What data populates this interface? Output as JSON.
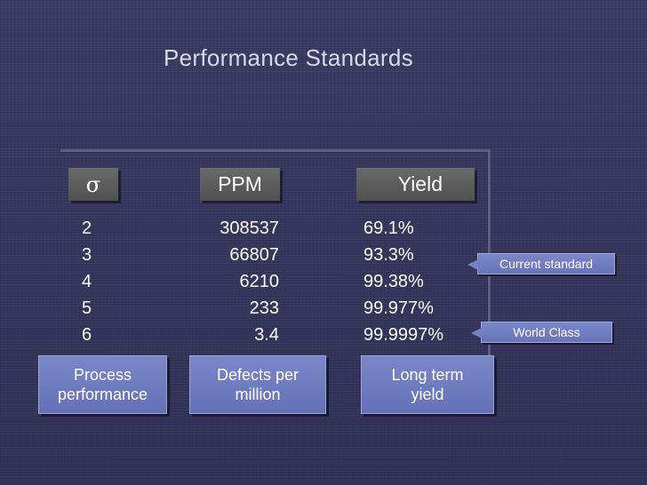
{
  "slide": {
    "title": "Performance Standards"
  },
  "table": {
    "headers": {
      "sigma": "σ",
      "ppm": "PPM",
      "yield": "Yield"
    },
    "rows": [
      {
        "sigma": "2",
        "ppm": "308537",
        "yield": "69.1%"
      },
      {
        "sigma": "3",
        "ppm": "66807",
        "yield": "93.3%"
      },
      {
        "sigma": "4",
        "ppm": "6210",
        "yield": "99.38%"
      },
      {
        "sigma": "5",
        "ppm": "233",
        "yield": "99.977%"
      },
      {
        "sigma": "6",
        "ppm": "3.4",
        "yield": "99.9997%"
      }
    ]
  },
  "labels": {
    "process_line1": "Process",
    "process_line2": "performance",
    "defects_line1": "Defects per",
    "defects_line2": "million",
    "yield_line1": "Long term",
    "yield_line2": "yield"
  },
  "callouts": {
    "current": "Current standard",
    "world": "World Class"
  },
  "colors": {
    "background": "#34345a",
    "header_box": "#5a5a5a",
    "label_box": "#6f7bbf"
  }
}
